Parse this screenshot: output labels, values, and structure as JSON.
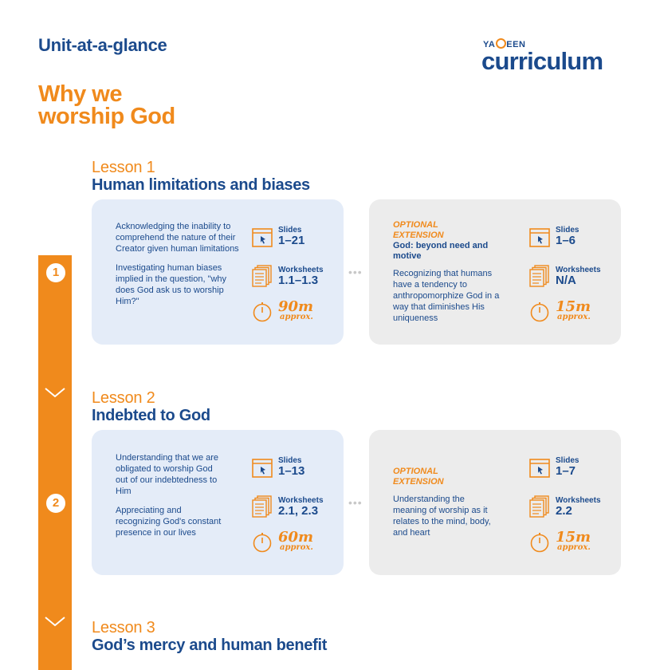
{
  "header": {
    "title": "Unit-at-a-glance",
    "logo_top": [
      "YA",
      "EEN"
    ],
    "logo_main": "curriculum"
  },
  "unit": {
    "title_line1": "Why we",
    "title_line2": "worship God"
  },
  "lessons": [
    {
      "number": "1",
      "label": "Lesson 1",
      "title": "Human limitations and biases",
      "objectives": [
        "Acknowledging the inability to comprehend the nature of their Creator given human limitations",
        "Investigating human biases implied in the question, \"why does God ask us to worship Him?\""
      ],
      "slides_label": "Slides",
      "slides": "1–21",
      "worksheets_label": "Worksheets",
      "worksheets": "1.1–1.3",
      "time": "90m",
      "time_note": "approx.",
      "extension": {
        "tag_line1": "OPTIONAL",
        "tag_line2": "EXTENSION",
        "title": "God: beyond need and motive",
        "text": "Recognizing that humans have a tendency to anthropomorphize God in a way that diminishes His uniqueness",
        "slides_label": "Slides",
        "slides": "1–6",
        "worksheets_label": "Worksheets",
        "worksheets": "N/A",
        "time": "15m",
        "time_note": "approx."
      }
    },
    {
      "number": "2",
      "label": "Lesson 2",
      "title": "Indebted to God",
      "objectives": [
        "Understanding that we are obligated to worship God out of our indebtedness to Him",
        "Appreciating and recognizing God's constant presence in our lives"
      ],
      "slides_label": "Slides",
      "slides": "1–13",
      "worksheets_label": "Worksheets",
      "worksheets": "2.1, 2.3",
      "time": "60m",
      "time_note": "approx.",
      "extension": {
        "tag_line1": "OPTIONAL",
        "tag_line2": "EXTENSION",
        "title": "",
        "text": "Understanding the meaning of worship as it relates to the mind, body, and heart",
        "slides_label": "Slides",
        "slides": "1–7",
        "worksheets_label": "Worksheets",
        "worksheets": "2.2",
        "time": "15m",
        "time_note": "approx."
      }
    },
    {
      "number": "3",
      "label": "Lesson 3",
      "title": "God’s mercy and human benefit"
    }
  ],
  "colors": {
    "brand_blue": "#1b4a8c",
    "brand_orange": "#f08a1c",
    "card_blue": "#e4ecf8",
    "card_gray": "#ececec"
  },
  "icons": [
    "slides-icon",
    "worksheets-icon",
    "clock-icon",
    "chevron-down-icon"
  ]
}
